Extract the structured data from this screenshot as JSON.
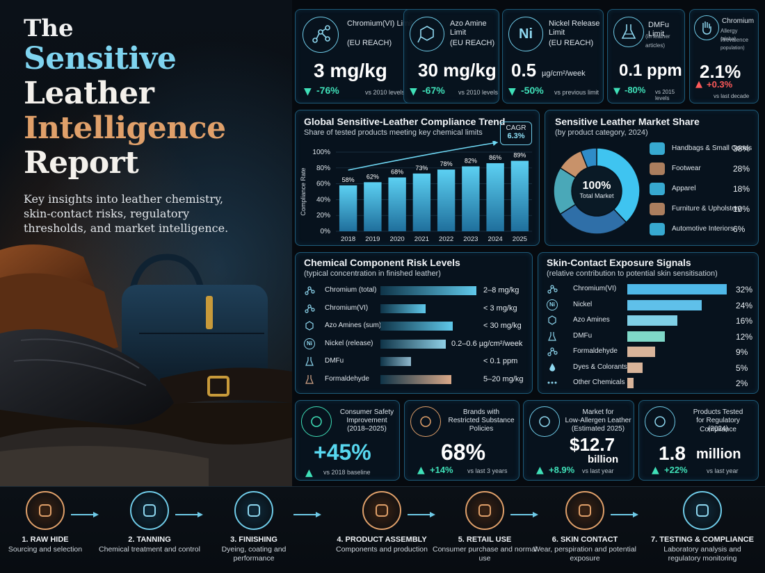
{
  "title": {
    "the": "The",
    "line1": "Sensitive",
    "line2": "Leather",
    "line3": "Intelligence",
    "line4": "Report",
    "subtitle": "Key insights into leather chemistry, skin-contact risks, regulatory thresholds, and market intelligence."
  },
  "colors": {
    "accent": "#6fcbe8",
    "down": "#3fe0b8",
    "up": "#ff5a5a",
    "copper": "#e0a06a"
  },
  "kpis": [
    {
      "icon": "molecule-icon",
      "label": "Chromium(VI) Limit",
      "sub": "(EU REACH)",
      "value": "3 mg/kg",
      "change": "-76%",
      "dir": "down",
      "vs": "vs 2010 levels"
    },
    {
      "icon": "benzene-ring-icon",
      "label": "Azo Amine Limit",
      "sub": "(EU REACH)",
      "value": "30 mg/kg",
      "change": "-67%",
      "dir": "down",
      "vs": "vs 2010 levels"
    },
    {
      "icon": "nickel-icon",
      "icon_text": "Ni",
      "label": "Nickel Release Limit",
      "sub": "(EU REACH)",
      "value": "0.5",
      "unit": "µg/cm²/week",
      "change": "-50%",
      "dir": "down",
      "vs": "vs previous limit"
    },
    {
      "icon": "flask-icon",
      "label": "DMFu Limit",
      "sub": "(in leather articles)",
      "value": "0.1 ppm",
      "change": "-80%",
      "dir": "down",
      "vs": "vs 2015 levels"
    },
    {
      "icon": "hand-icon",
      "label": "Chromium",
      "label2": "Allergy Prevalence",
      "sub": "(global population)",
      "value": "2.1%",
      "change": "+0.3%",
      "dir": "up",
      "vs": "vs last decade"
    }
  ],
  "trend": {
    "title": "Global Sensitive-Leather Compliance Trend",
    "subtitle": "Share of tested products meeting key chemical limits",
    "cagr_label": "CAGR",
    "cagr_value": "6.3%"
  },
  "market": {
    "title": "Sensitive Leather Market Share",
    "subtitle": "(by product category, 2024)",
    "center_value": "100%",
    "center_label": "Total Market"
  },
  "chemical": {
    "title": "Chemical Component Risk Levels",
    "subtitle": "(typical concentration in finished leather)",
    "rows": [
      {
        "icon": "molecule-icon",
        "label": "Chromium (total)",
        "value": "2–8 mg/kg",
        "level": 0.95,
        "color": "#5fc8ea"
      },
      {
        "icon": "molecule-icon",
        "label": "Chromium(VI)",
        "value": "< 3 mg/kg",
        "level": 0.45,
        "color": "#5fc8ea"
      },
      {
        "icon": "benzene-ring-icon",
        "label": "Azo Amines (sum)",
        "value": "< 30 mg/kg",
        "level": 0.72,
        "color": "#5fc8ea"
      },
      {
        "icon": "nickel-icon",
        "icon_text": "Ni",
        "label": "Nickel (release)",
        "value": "0.2–0.6 µg/cm²/week",
        "level": 0.65,
        "color": "#8fd0e6"
      },
      {
        "icon": "flask-icon",
        "label": "DMFu",
        "value": "< 0.1 ppm",
        "level": 0.3,
        "color": "#8fb8cc"
      },
      {
        "icon": "flask-icon",
        "label": "Formaldehyde",
        "value": "5–20 mg/kg",
        "level": 0.7,
        "color": "#d9a888"
      }
    ]
  },
  "exposure": {
    "title": "Skin-Contact Exposure Signals",
    "subtitle": "(relative contribution to potential skin sensitisation)",
    "rows": [
      {
        "icon": "molecule-icon",
        "label": "Chromium(VI)",
        "value": "32%",
        "pct": 32,
        "color": "#4fb8e8"
      },
      {
        "icon": "nickel-icon",
        "icon_text": "Ni",
        "label": "Nickel",
        "value": "24%",
        "pct": 24,
        "color": "#5fc0ea"
      },
      {
        "icon": "benzene-ring-icon",
        "label": "Azo Amines",
        "value": "16%",
        "pct": 16,
        "color": "#7fcfe6"
      },
      {
        "icon": "flask-icon",
        "label": "DMFu",
        "value": "12%",
        "pct": 12,
        "color": "#7fd8c8"
      },
      {
        "icon": "molecule-icon",
        "label": "Formaldehyde",
        "value": "9%",
        "pct": 9,
        "color": "#d8b49a"
      },
      {
        "icon": "droplet-icon",
        "label": "Dyes & Colorants",
        "value": "5%",
        "pct": 5,
        "color": "#d8b49a"
      },
      {
        "icon": "dots-icon",
        "label": "Other Chemicals",
        "value": "2%",
        "pct": 2,
        "color": "#d8b49a"
      }
    ]
  },
  "stats": [
    {
      "icon": "leaf-icon",
      "label": "Consumer Safety Improvement (2018–2025)",
      "lines": [
        "Consumer Safety",
        "Improvement",
        "(2018–2025)"
      ],
      "value": "+45%",
      "change": "",
      "vs": "vs 2018 baseline",
      "value_color": "#58d8f0"
    },
    {
      "icon": "shield-check-icon",
      "lines": [
        "Brands with",
        "Restricted Substance",
        "Policies"
      ],
      "value": "68%",
      "change": "+14%",
      "vs": "vs last 3 years",
      "value_color": "#ffffff"
    },
    {
      "icon": "globe-icon",
      "lines": [
        "Market for",
        "Low-Allergen Leather",
        "(Estimated 2025)"
      ],
      "value": "$12.7",
      "value2": "billion",
      "change": "+8.9%",
      "vs": "vs last year",
      "value_color": "#ffffff"
    },
    {
      "icon": "document-icon",
      "lines": [
        "Products Tested",
        "for Regulatory Compliance",
        "(2024)"
      ],
      "value": "1.8",
      "value2": "million",
      "change": "+22%",
      "vs": "vs last year",
      "value_color": "#ffffff"
    }
  ],
  "steps": [
    {
      "icon": "hide-icon",
      "title": "1. RAW HIDE",
      "desc": "Sourcing and selection",
      "tone": "copper"
    },
    {
      "icon": "gear-icon",
      "title": "2. TANNING",
      "desc": "Chemical treatment and control",
      "tone": "blue"
    },
    {
      "icon": "layers-icon",
      "title": "3. FINISHING",
      "desc": "Dyeing, coating and performance",
      "tone": "blue"
    },
    {
      "icon": "bag-icon",
      "title": "4. PRODUCT ASSEMBLY",
      "desc": "Components and production",
      "tone": "copper"
    },
    {
      "icon": "cart-icon",
      "title": "5. RETAIL USE",
      "desc": "Consumer purchase and normal use",
      "tone": "copper"
    },
    {
      "icon": "hand-icon",
      "title": "6. SKIN CONTACT",
      "desc": "Wear, perspiration and potential exposure",
      "tone": "copper"
    },
    {
      "icon": "clipboard-icon",
      "title": "7. TESTING & COMPLIANCE",
      "desc": "Laboratory analysis and regulatory monitoring",
      "tone": "blue"
    }
  ],
  "chart_data": [
    {
      "type": "bar",
      "title": "Global Sensitive-Leather Compliance Trend",
      "subtitle": "Share of tested products meeting key chemical limits",
      "ylabel": "Compliance Rate",
      "categories": [
        "2018",
        "2019",
        "2020",
        "2021",
        "2022",
        "2023",
        "2024",
        "2025"
      ],
      "values": [
        58,
        62,
        68,
        73,
        78,
        82,
        86,
        89
      ],
      "value_labels": [
        "58%",
        "62%",
        "68%",
        "73%",
        "78%",
        "82%",
        "86%",
        "89%"
      ],
      "ylim": [
        0,
        100
      ],
      "yticks": [
        "0%",
        "20%",
        "40%",
        "60%",
        "80%",
        "100%"
      ],
      "annotation": "CAGR 6.3%",
      "grid": true
    },
    {
      "type": "pie",
      "title": "Sensitive Leather Market Share",
      "subtitle": "(by product category, 2024)",
      "categories": [
        "Handbags & Small Goods",
        "Footwear",
        "Apparel",
        "Furniture & Upholstery",
        "Automotive Interiors"
      ],
      "values": [
        38,
        28,
        18,
        10,
        6
      ],
      "value_labels": [
        "38%",
        "28%",
        "18%",
        "10%",
        "6%"
      ],
      "icons": [
        "handbag-icon",
        "shoe-icon",
        "jacket-icon",
        "sofa-icon",
        "car-icon"
      ],
      "colors": [
        "#3fc4f0",
        "#2f6fa8",
        "#4aa8b8",
        "#c8926a",
        "#2f8cc8"
      ],
      "center": "100% Total Market",
      "legend": "right"
    }
  ]
}
